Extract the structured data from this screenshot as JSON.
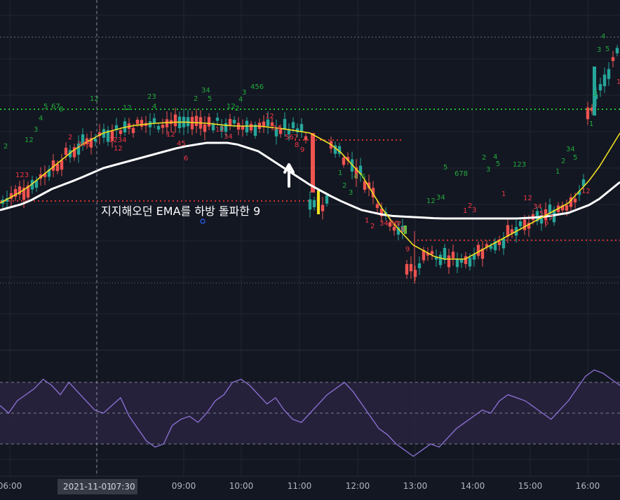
{
  "colors": {
    "background": "#131722",
    "grid": "#1f2431",
    "up": "#26a69a",
    "down": "#ef5350",
    "ema_fast": "#f2e022",
    "ema_slow": "#ffffff",
    "rsi_line": "#8e72d6",
    "rsi_band": "#2a2340",
    "dotted_green": "#1fbf2a",
    "dotted_red": "#d32f2f",
    "seq_green": "#22ab3a",
    "seq_red": "#f23645"
  },
  "annotation": {
    "text": "지지해오던 EMA를 하방 돌파한 9",
    "arrow": "up-arrow-icon"
  },
  "crosshair": {
    "date": "2021-11-01",
    "time": "07:30"
  },
  "chart_data": [
    {
      "type": "candlestick",
      "panel": "price",
      "x_ticks": [
        "06:00",
        "07:30",
        "09:00",
        "10:00",
        "11:00",
        "12:00",
        "13:00",
        "14:00",
        "15:00",
        "16:00"
      ],
      "series": [
        {
          "name": "",
          "kind": "ema",
          "values": [
            0.35,
            0.45,
            0.6,
            0.75,
            0.85,
            0.9,
            0.92,
            0.93,
            0.92,
            0.9,
            0.9,
            0.88,
            0.85,
            0.75,
            0.55,
            0.25,
            0.05,
            -0.05,
            -0.05,
            0.05,
            0.15,
            0.25,
            0.35,
            0.55,
            0.85
          ]
        },
        {
          "name": "",
          "kind": "ema",
          "values": [
            0.3,
            0.35,
            0.45,
            0.52,
            0.6,
            0.65,
            0.7,
            0.75,
            0.78,
            0.78,
            0.72,
            0.6,
            0.48,
            0.38,
            0.3,
            0.26,
            0.25,
            0.24,
            0.24,
            0.24,
            0.24,
            0.25,
            0.28,
            0.35,
            0.5
          ]
        }
      ],
      "candles_note": "values in relative price units 0..1"
    },
    {
      "type": "line",
      "panel": "rsi",
      "levels": [
        70,
        50,
        30
      ],
      "values": [
        55,
        50,
        58,
        62,
        66,
        72,
        68,
        62,
        70,
        64,
        58,
        52,
        50,
        55,
        60,
        48,
        40,
        32,
        28,
        30,
        42,
        46,
        48,
        44,
        50,
        58,
        62,
        70,
        72,
        68,
        62,
        56,
        60,
        52,
        46,
        44,
        50,
        56,
        62,
        66,
        70,
        64,
        56,
        48,
        40,
        36,
        30,
        26,
        22,
        26,
        30,
        28,
        34,
        40,
        44,
        48,
        52,
        50,
        58,
        62,
        60,
        58,
        54,
        50,
        46,
        52,
        58,
        66,
        74,
        78,
        76,
        72,
        68
      ]
    }
  ],
  "td_labels": [
    {
      "t": "2",
      "c": "g",
      "x": 5,
      "y": 212
    },
    {
      "t": "12",
      "c": "g",
      "x": 35,
      "y": 203
    },
    {
      "t": "3",
      "c": "g",
      "x": 48,
      "y": 188
    },
    {
      "t": "4",
      "c": "g",
      "x": 55,
      "y": 172
    },
    {
      "t": "5",
      "c": "g",
      "x": 62,
      "y": 155
    },
    {
      "t": "67",
      "c": "g",
      "x": 73,
      "y": 155
    },
    {
      "t": "8",
      "c": "g",
      "x": 84,
      "y": 159
    },
    {
      "t": "12",
      "c": "g",
      "x": 128,
      "y": 144
    },
    {
      "t": "12",
      "c": "g",
      "x": 175,
      "y": 157
    },
    {
      "t": "23",
      "c": "g",
      "x": 210,
      "y": 141
    },
    {
      "t": "4",
      "c": "g",
      "x": 217,
      "y": 155
    },
    {
      "t": "2",
      "c": "g",
      "x": 276,
      "y": 144
    },
    {
      "t": "34",
      "c": "g",
      "x": 287,
      "y": 132
    },
    {
      "t": "5",
      "c": "g",
      "x": 296,
      "y": 144
    },
    {
      "t": "12",
      "c": "g",
      "x": 323,
      "y": 155
    },
    {
      "t": "3",
      "c": "g",
      "x": 345,
      "y": 135
    },
    {
      "t": "456",
      "c": "g",
      "x": 357,
      "y": 127
    },
    {
      "t": "4",
      "c": "g",
      "x": 340,
      "y": 145
    },
    {
      "t": "2",
      "c": "g",
      "x": 335,
      "y": 158
    },
    {
      "t": "1",
      "c": "g",
      "x": 482,
      "y": 250
    },
    {
      "t": "2",
      "c": "g",
      "x": 488,
      "y": 268
    },
    {
      "t": "3",
      "c": "g",
      "x": 497,
      "y": 278
    },
    {
      "t": "4",
      "c": "g",
      "x": 504,
      "y": 255
    },
    {
      "t": "6",
      "c": "g",
      "x": 515,
      "y": 255
    },
    {
      "t": "5",
      "c": "g",
      "x": 632,
      "y": 242
    },
    {
      "t": "678",
      "c": "g",
      "x": 648,
      "y": 251
    },
    {
      "t": "34",
      "c": "g",
      "x": 622,
      "y": 285
    },
    {
      "t": "12",
      "c": "g",
      "x": 608,
      "y": 290
    },
    {
      "t": "2",
      "c": "g",
      "x": 687,
      "y": 228
    },
    {
      "t": "4",
      "c": "g",
      "x": 703,
      "y": 227
    },
    {
      "t": "3",
      "c": "g",
      "x": 693,
      "y": 245
    },
    {
      "t": "5",
      "c": "g",
      "x": 707,
      "y": 237
    },
    {
      "t": "123",
      "c": "g",
      "x": 731,
      "y": 238
    },
    {
      "t": "34",
      "c": "g",
      "x": 807,
      "y": 216
    },
    {
      "t": "5",
      "c": "g",
      "x": 817,
      "y": 228
    },
    {
      "t": "2",
      "c": "g",
      "x": 800,
      "y": 233
    },
    {
      "t": "1",
      "c": "g",
      "x": 792,
      "y": 248
    },
    {
      "t": "4",
      "c": "g",
      "x": 857,
      "y": 55
    },
    {
      "t": "3",
      "c": "g",
      "x": 851,
      "y": 74
    },
    {
      "t": "5",
      "c": "g",
      "x": 863,
      "y": 73
    },
    {
      "t": "2",
      "c": "g",
      "x": 846,
      "y": 137
    },
    {
      "t": "1",
      "c": "g",
      "x": 840,
      "y": 180
    },
    {
      "t": "123",
      "c": "r",
      "x": 22,
      "y": 253
    },
    {
      "t": "345",
      "c": "r",
      "x": 110,
      "y": 209
    },
    {
      "t": "2",
      "c": "r",
      "x": 97,
      "y": 199
    },
    {
      "t": "1234",
      "c": "r",
      "x": 155,
      "y": 203
    },
    {
      "t": "12",
      "c": "r",
      "x": 162,
      "y": 215
    },
    {
      "t": "12",
      "c": "r",
      "x": 237,
      "y": 195
    },
    {
      "t": "45",
      "c": "r",
      "x": 252,
      "y": 208
    },
    {
      "t": "6",
      "c": "r",
      "x": 262,
      "y": 229
    },
    {
      "t": "12",
      "c": "r",
      "x": 307,
      "y": 188
    },
    {
      "t": "34",
      "c": "r",
      "x": 319,
      "y": 198
    },
    {
      "t": "12",
      "c": "r",
      "x": 378,
      "y": 169
    },
    {
      "t": "34",
      "c": "r",
      "x": 388,
      "y": 186
    },
    {
      "t": "567",
      "c": "r",
      "x": 406,
      "y": 199
    },
    {
      "t": "8",
      "c": "r",
      "x": 420,
      "y": 210
    },
    {
      "t": "9",
      "c": "r",
      "x": 428,
      "y": 217
    },
    {
      "t": "1",
      "c": "r",
      "x": 520,
      "y": 318
    },
    {
      "t": "2",
      "c": "r",
      "x": 528,
      "y": 326
    },
    {
      "t": "34",
      "c": "r",
      "x": 541,
      "y": 322
    },
    {
      "t": "56",
      "c": "r",
      "x": 556,
      "y": 322
    },
    {
      "t": "7",
      "c": "r",
      "x": 566,
      "y": 323
    },
    {
      "t": "8",
      "c": "r",
      "x": 571,
      "y": 331
    },
    {
      "t": "9",
      "c": "r",
      "x": 578,
      "y": 359
    },
    {
      "t": "2",
      "c": "r",
      "x": 667,
      "y": 297
    },
    {
      "t": "1",
      "c": "r",
      "x": 660,
      "y": 304
    },
    {
      "t": "3",
      "c": "r",
      "x": 673,
      "y": 303
    },
    {
      "t": "1",
      "c": "r",
      "x": 715,
      "y": 280
    },
    {
      "t": "12",
      "c": "r",
      "x": 746,
      "y": 286
    },
    {
      "t": "34",
      "c": "r",
      "x": 760,
      "y": 298
    },
    {
      "t": "5",
      "c": "r",
      "x": 769,
      "y": 308
    },
    {
      "t": "7",
      "c": "r",
      "x": 783,
      "y": 314
    },
    {
      "t": "6",
      "c": "r",
      "x": 776,
      "y": 321
    },
    {
      "t": "12",
      "c": "r",
      "x": 829,
      "y": 276
    },
    {
      "t": "1",
      "c": "r",
      "x": 879,
      "y": 120
    }
  ]
}
